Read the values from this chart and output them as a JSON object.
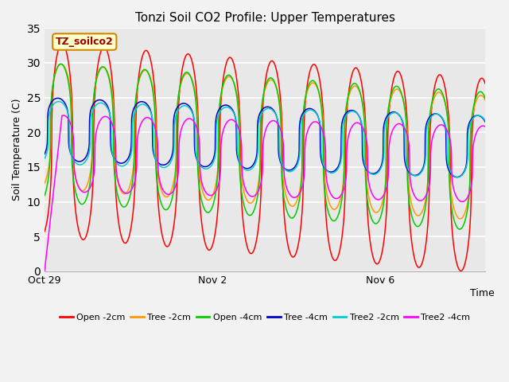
{
  "title": "Tonzi Soil CO2 Profile: Upper Temperatures",
  "xlabel": "Time",
  "ylabel": "Soil Temperature (C)",
  "ylim": [
    0,
    35
  ],
  "yticks": [
    0,
    5,
    10,
    15,
    20,
    25,
    30,
    35
  ],
  "series_colors": [
    "#ff0000",
    "#ff9900",
    "#00cc00",
    "#0000cc",
    "#00cccc",
    "#ff00ff"
  ],
  "series_labels": [
    "Open -2cm",
    "Tree -2cm",
    "Open -4cm",
    "Tree -4cm",
    "Tree2 -2cm",
    "Tree2 -4cm"
  ],
  "label_box_text": "TZ_soilco2",
  "label_box_color": "#ffffcc",
  "label_box_edge": "#cc8800",
  "n_points": 2000,
  "days": 10.5,
  "start_year": 2005,
  "start_month": 10,
  "start_day": 29,
  "start_hour": 0,
  "xtick_labels": [
    "Oct 29",
    "Nov 2",
    "Nov 6"
  ],
  "xtick_days_offset": [
    0,
    4,
    8
  ],
  "fig_bg": "#f2f2f2",
  "plot_bg": "#e8e8e8",
  "grid_color": "#ffffff"
}
